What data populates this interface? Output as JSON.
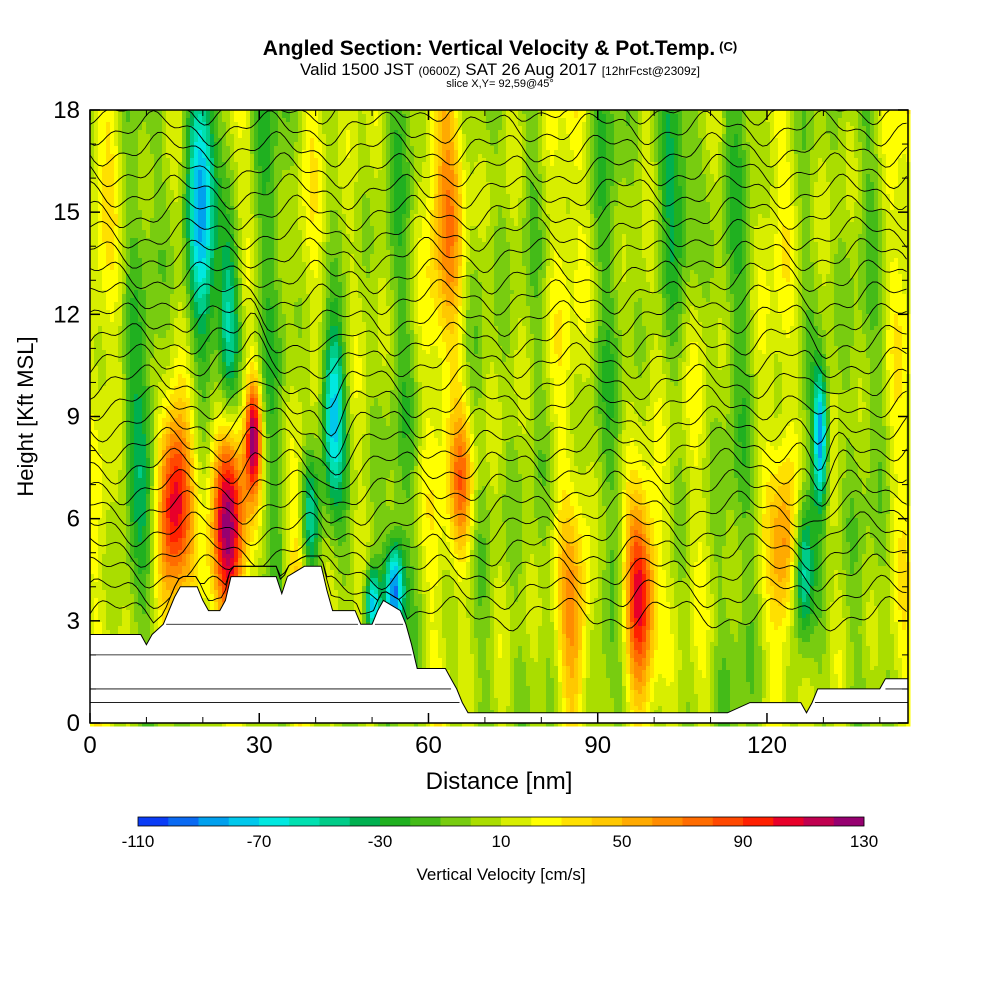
{
  "header": {
    "title_main": "Angled Section: Vertical Velocity & Pot.Temp.",
    "title_mark": "(C)",
    "valid_a": "Valid 1500 JST",
    "valid_b": "(0600Z)",
    "valid_c": "SAT 26 Aug 2017",
    "valid_d": "[12hrFcst@2309z]",
    "slice": "slice X,Y= 92,59@45°"
  },
  "chart_data": {
    "type": "heatmap",
    "xlabel": "Distance [nm]",
    "ylabel": "Height [Kft MSL]",
    "xlim": [
      0,
      145
    ],
    "ylim": [
      0,
      18
    ],
    "xticks": [
      0,
      30,
      60,
      90,
      120
    ],
    "yticks": [
      0,
      3,
      6,
      9,
      12,
      15,
      18
    ],
    "colorbar": {
      "label": "Vertical Velocity [cm/s]",
      "range": [
        -110,
        130
      ],
      "step": 10,
      "tick_labels": [
        "-110",
        "-70",
        "-30",
        "10",
        "50",
        "90",
        "130"
      ],
      "colors": [
        "#0000ee",
        "#0a3cf6",
        "#0a6af2",
        "#00a0ee",
        "#00c8ec",
        "#00e8e0",
        "#00e0b0",
        "#00cc88",
        "#00b050",
        "#20b020",
        "#44bb18",
        "#78cc10",
        "#aadd00",
        "#d8ee00",
        "#ffff00",
        "#ffe000",
        "#ffc800",
        "#ffaa00",
        "#ff8c00",
        "#ff6c00",
        "#ff4800",
        "#ff2000",
        "#e8002a",
        "#c00050",
        "#960070",
        "#6a0090"
      ]
    },
    "terrain_kft": [
      [
        0,
        2.6
      ],
      [
        9,
        2.6
      ],
      [
        10,
        2.3
      ],
      [
        11,
        2.6
      ],
      [
        13,
        2.9
      ],
      [
        15,
        3.7
      ],
      [
        16,
        4.0
      ],
      [
        19,
        4.0
      ],
      [
        20,
        3.6
      ],
      [
        21,
        3.3
      ],
      [
        23,
        3.3
      ],
      [
        24,
        3.6
      ],
      [
        25,
        4.3
      ],
      [
        33,
        4.3
      ],
      [
        34,
        3.8
      ],
      [
        35,
        4.3
      ],
      [
        38,
        4.6
      ],
      [
        41,
        4.6
      ],
      [
        42,
        3.9
      ],
      [
        43,
        3.3
      ],
      [
        47,
        3.3
      ],
      [
        48,
        2.9
      ],
      [
        50,
        2.9
      ],
      [
        51,
        3.3
      ],
      [
        52,
        3.6
      ],
      [
        55,
        3.3
      ],
      [
        56,
        2.9
      ],
      [
        57,
        2.3
      ],
      [
        58,
        1.6
      ],
      [
        63,
        1.6
      ],
      [
        64,
        1.3
      ],
      [
        65,
        1.0
      ],
      [
        66,
        0.6
      ],
      [
        67,
        0.3
      ],
      [
        80,
        0.3
      ],
      [
        89,
        0.3
      ],
      [
        94,
        0.3
      ],
      [
        98,
        0.3
      ],
      [
        104,
        0.3
      ],
      [
        113,
        0.3
      ],
      [
        117,
        0.6
      ],
      [
        126,
        0.6
      ],
      [
        127,
        0.3
      ],
      [
        128,
        0.6
      ],
      [
        129,
        1.0
      ],
      [
        140,
        1.0
      ],
      [
        141,
        1.3
      ],
      [
        145,
        1.3
      ]
    ],
    "updrafts": [
      {
        "x": 15.0,
        "y": 6.5,
        "sx": 2.2,
        "sy": 1.9,
        "w": 115
      },
      {
        "x": 24.5,
        "y": 6.0,
        "sx": 2.3,
        "sy": 2.2,
        "w": 100
      },
      {
        "x": 29.0,
        "y": 8.4,
        "sx": 1.0,
        "sy": 1.2,
        "w": 110
      },
      {
        "x": 97.5,
        "y": 3.8,
        "sx": 2.0,
        "sy": 1.8,
        "w": 100
      },
      {
        "x": 66.0,
        "y": 7.0,
        "sx": 1.6,
        "sy": 1.6,
        "w": 60
      },
      {
        "x": 123.0,
        "y": 5.0,
        "sx": 1.5,
        "sy": 1.8,
        "w": 50
      },
      {
        "x": 64.0,
        "y": 15.0,
        "sx": 2.5,
        "sy": 3.0,
        "w": 40
      },
      {
        "x": 86.0,
        "y": 3.0,
        "sx": 2.0,
        "sy": 2.0,
        "w": 45
      },
      {
        "x": 37.0,
        "y": 3.5,
        "sx": 1.8,
        "sy": 2.0,
        "w": 40
      }
    ],
    "downdrafts": [
      {
        "x": 20.0,
        "y": 15.5,
        "sx": 2.0,
        "sy": 3.0,
        "w": -80
      },
      {
        "x": 24.5,
        "y": 11.5,
        "sx": 1.5,
        "sy": 2.2,
        "w": -75
      },
      {
        "x": 43.0,
        "y": 9.0,
        "sx": 1.5,
        "sy": 1.8,
        "w": -85
      },
      {
        "x": 54.0,
        "y": 3.9,
        "sx": 1.2,
        "sy": 1.0,
        "w": -100
      },
      {
        "x": 50.0,
        "y": 3.5,
        "sx": 1.0,
        "sy": 0.8,
        "w": -85
      },
      {
        "x": 129.5,
        "y": 8.4,
        "sx": 0.9,
        "sy": 1.4,
        "w": -95
      },
      {
        "x": 126.5,
        "y": 4.5,
        "sx": 1.1,
        "sy": 1.5,
        "w": -60
      },
      {
        "x": 39.0,
        "y": 6.0,
        "sx": 1.2,
        "sy": 1.5,
        "w": -60
      },
      {
        "x": 104.0,
        "y": 16.0,
        "sx": 3.0,
        "sy": 2.5,
        "w": -40
      },
      {
        "x": 9.0,
        "y": 8.0,
        "sx": 3.0,
        "sy": 2.0,
        "w": -30
      }
    ]
  }
}
